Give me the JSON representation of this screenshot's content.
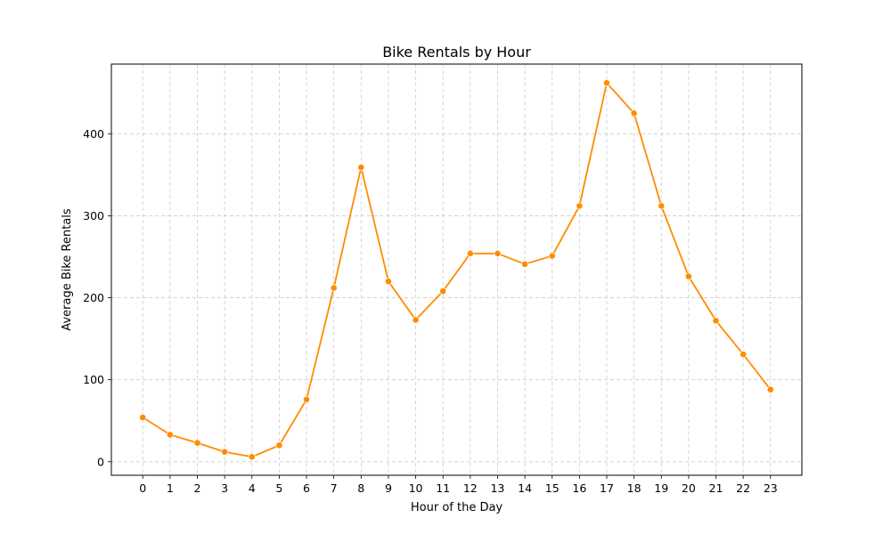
{
  "chart_data": {
    "type": "line",
    "title": "Bike Rentals by Hour",
    "xlabel": "Hour of the Day",
    "ylabel": "Average Bike Rentals",
    "x": [
      0,
      1,
      2,
      3,
      4,
      5,
      6,
      7,
      8,
      9,
      10,
      11,
      12,
      13,
      14,
      15,
      16,
      17,
      18,
      19,
      20,
      21,
      22,
      23
    ],
    "x_tick_labels": [
      "0",
      "1",
      "2",
      "3",
      "4",
      "5",
      "6",
      "7",
      "8",
      "9",
      "10",
      "11",
      "12",
      "13",
      "14",
      "15",
      "16",
      "17",
      "18",
      "19",
      "20",
      "21",
      "22",
      "23"
    ],
    "series": [
      {
        "values": [
          54,
          33,
          23,
          12,
          6,
          20,
          76,
          212,
          359,
          220,
          173,
          208,
          254,
          254,
          241,
          251,
          312,
          462,
          425,
          312,
          226,
          172,
          131,
          88
        ]
      }
    ],
    "xlim": [
      -1.15,
      24.15
    ],
    "ylim": [
      -16.5,
      485
    ],
    "y_ticks": [
      0,
      100,
      200,
      300,
      400
    ],
    "grid": true,
    "colors": {
      "line": "#ff8c00",
      "grid": "#cccccc",
      "axes": "#000000"
    }
  }
}
